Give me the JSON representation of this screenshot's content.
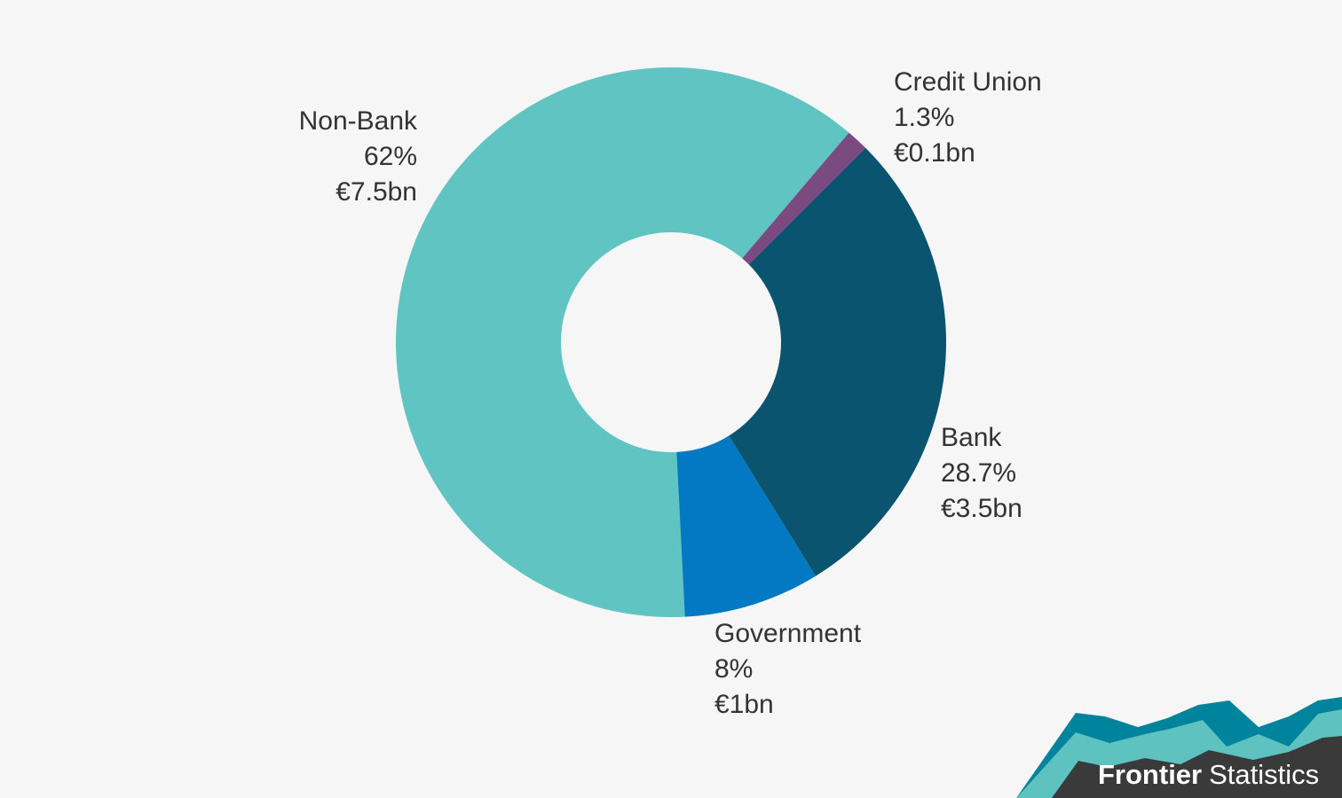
{
  "chart_data": {
    "type": "pie",
    "variant": "donut",
    "title": "",
    "slices": [
      {
        "label": "Non-Bank",
        "percent_label": "62%",
        "value_label": "€7.5bn",
        "value": 7.5,
        "percent": 62.0,
        "color": "#60c4c2"
      },
      {
        "label": "Credit Union",
        "percent_label": "1.3%",
        "value_label": "€0.1bn",
        "value": 0.1,
        "percent": 1.3,
        "color": "#7b4a80"
      },
      {
        "label": "Bank",
        "percent_label": "28.7%",
        "value_label": "€3.5bn",
        "value": 3.5,
        "percent": 28.7,
        "color": "#0a5470"
      },
      {
        "label": "Government",
        "percent_label": "8%",
        "value_label": "€1bn",
        "value": 1.0,
        "percent": 8.0,
        "color": "#0279c2"
      }
    ],
    "legend": "none"
  },
  "logo": {
    "name_bold": "Frontier",
    "name_regular": "Statistics",
    "colors": {
      "dark": "#3a3a3a",
      "teal_dark": "#00839c",
      "teal_light": "#5ec2c0"
    }
  },
  "colors": {
    "background": "#f6f6f6",
    "text": "#333333"
  }
}
